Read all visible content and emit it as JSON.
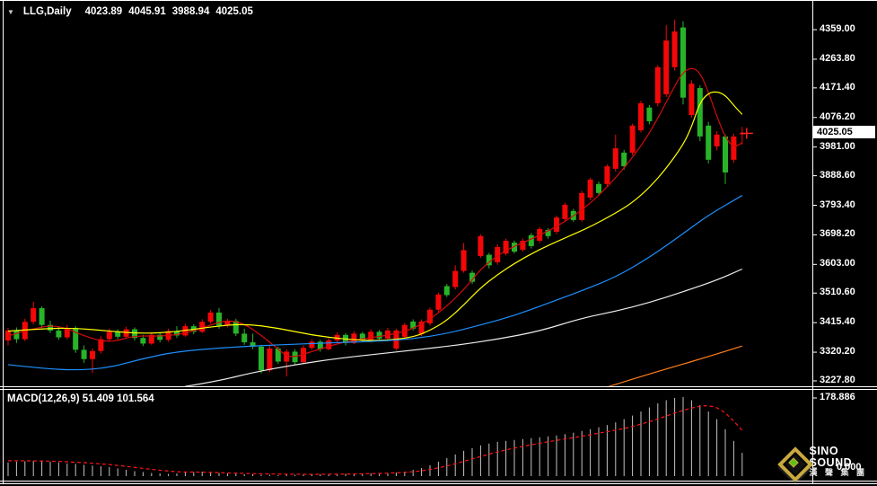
{
  "header": {
    "dropdown_icon": "▼",
    "symbol": "LLG,Daily",
    "open": "4023.89",
    "high": "4045.91",
    "low": "3988.94",
    "close": "4025.05"
  },
  "macd_title": "MACD(12,26,9) 51.409 101.564",
  "price_tag": "4025.05",
  "macd_axis": {
    "max": "178.886",
    "min": "0.000"
  },
  "logo": {
    "name": "SINO SOUND",
    "cjk": "漢 聲 集 團"
  },
  "chart_data": {
    "type": "candlestick",
    "symbol": "LLG",
    "timeframe": "Daily",
    "last_ohlc": {
      "open": 4023.89,
      "high": 4045.91,
      "low": 3988.94,
      "close": 4025.05
    },
    "color_convention": "red = up, green = down",
    "colors": {
      "background": "#000000",
      "up": "#f40707",
      "down": "#28b428",
      "border": "#ffffff",
      "histogram": "#c4c4c4",
      "signal": "#ff1414",
      "marker": "#ff2020"
    },
    "price_axis": {
      "ticks": [
        4359.0,
        4263.8,
        4171.4,
        4076.2,
        3981.0,
        3888.6,
        3793.4,
        3698.2,
        3603.0,
        3510.6,
        3415.4,
        3320.2,
        3227.8
      ],
      "current_price": 4025.05
    },
    "candles": [
      [
        3358,
        3398,
        3342,
        3390
      ],
      [
        3390,
        3400,
        3350,
        3362
      ],
      [
        3362,
        3428,
        3356,
        3418
      ],
      [
        3418,
        3483,
        3410,
        3462
      ],
      [
        3462,
        3468,
        3398,
        3408
      ],
      [
        3408,
        3422,
        3382,
        3390
      ],
      [
        3390,
        3402,
        3360,
        3368
      ],
      [
        3368,
        3408,
        3362,
        3398
      ],
      [
        3398,
        3404,
        3318,
        3328
      ],
      [
        3328,
        3342,
        3286,
        3298
      ],
      [
        3298,
        3332,
        3253,
        3324
      ],
      [
        3324,
        3372,
        3316,
        3362
      ],
      [
        3362,
        3396,
        3354,
        3386
      ],
      [
        3386,
        3394,
        3362,
        3370
      ],
      [
        3370,
        3402,
        3366,
        3394
      ],
      [
        3394,
        3400,
        3358,
        3366
      ],
      [
        3366,
        3376,
        3340,
        3348
      ],
      [
        3348,
        3384,
        3344,
        3376
      ],
      [
        3376,
        3382,
        3352,
        3360
      ],
      [
        3360,
        3396,
        3354,
        3388
      ],
      [
        3388,
        3404,
        3366,
        3374
      ],
      [
        3374,
        3412,
        3370,
        3404
      ],
      [
        3404,
        3410,
        3378,
        3386
      ],
      [
        3386,
        3426,
        3382,
        3418
      ],
      [
        3418,
        3456,
        3412,
        3448
      ],
      [
        3448,
        3462,
        3396,
        3406
      ],
      [
        3406,
        3428,
        3400,
        3421
      ],
      [
        3421,
        3428,
        3372,
        3380
      ],
      [
        3380,
        3396,
        3344,
        3352
      ],
      [
        3352,
        3380,
        3330,
        3338
      ],
      [
        3338,
        3344,
        3252,
        3262
      ],
      [
        3262,
        3340,
        3256,
        3332
      ],
      [
        3332,
        3338,
        3282,
        3290
      ],
      [
        3290,
        3330,
        3242,
        3322
      ],
      [
        3322,
        3330,
        3280,
        3288
      ],
      [
        3288,
        3342,
        3284,
        3334
      ],
      [
        3334,
        3362,
        3328,
        3354
      ],
      [
        3354,
        3360,
        3322,
        3330
      ],
      [
        3330,
        3366,
        3326,
        3358
      ],
      [
        3358,
        3384,
        3352,
        3376
      ],
      [
        3376,
        3382,
        3342,
        3350
      ],
      [
        3350,
        3388,
        3346,
        3380
      ],
      [
        3380,
        3386,
        3352,
        3360
      ],
      [
        3360,
        3394,
        3356,
        3386
      ],
      [
        3386,
        3392,
        3356,
        3364
      ],
      [
        3364,
        3398,
        3358,
        3390
      ],
      [
        3332,
        3396,
        3326,
        3390
      ],
      [
        3370,
        3415,
        3364,
        3408
      ],
      [
        3419,
        3426,
        3390,
        3396
      ],
      [
        3379,
        3426,
        3372,
        3419
      ],
      [
        3413,
        3464,
        3406,
        3457
      ],
      [
        3457,
        3512,
        3450,
        3506
      ],
      [
        3533,
        3540,
        3498,
        3504
      ],
      [
        3530,
        3600,
        3522,
        3582
      ],
      [
        3582,
        3672,
        3576,
        3649
      ],
      [
        3576,
        3584,
        3540,
        3547
      ],
      [
        3630,
        3700,
        3624,
        3694
      ],
      [
        3634,
        3640,
        3590,
        3600
      ],
      [
        3610,
        3668,
        3602,
        3659
      ],
      [
        3638,
        3686,
        3632,
        3679
      ],
      [
        3673,
        3680,
        3638,
        3644
      ],
      [
        3650,
        3686,
        3644,
        3679
      ],
      [
        3697,
        3704,
        3654,
        3662
      ],
      [
        3679,
        3724,
        3672,
        3717
      ],
      [
        3714,
        3720,
        3686,
        3694
      ],
      [
        3708,
        3760,
        3700,
        3754
      ],
      [
        3749,
        3802,
        3742,
        3795
      ],
      [
        3775,
        3782,
        3740,
        3746
      ],
      [
        3746,
        3840,
        3740,
        3833
      ],
      [
        3818,
        3882,
        3810,
        3876
      ],
      [
        3862,
        3870,
        3824,
        3833
      ],
      [
        3862,
        3925,
        3854,
        3919
      ],
      [
        3911,
        4021,
        3902,
        3977
      ],
      [
        3963,
        3972,
        3908,
        3919
      ],
      [
        3963,
        4056,
        3954,
        4050
      ],
      [
        4035,
        4130,
        4028,
        4122
      ],
      [
        4108,
        4116,
        4054,
        4064
      ],
      [
        4122,
        4245,
        4112,
        4238
      ],
      [
        4151,
        4373,
        4142,
        4324
      ],
      [
        4238,
        4391,
        4228,
        4353
      ],
      [
        4366,
        4386,
        4118,
        4140
      ],
      [
        4084,
        4196,
        4076,
        4185
      ],
      [
        4171,
        4180,
        4000,
        4015
      ],
      [
        4050,
        4062,
        3928,
        3940
      ],
      [
        3983,
        4032,
        3970,
        4021
      ],
      [
        4015,
        4022,
        3862,
        3899
      ],
      [
        3940,
        4024,
        3930,
        4015
      ],
      [
        4023.89,
        4045.91,
        3988.94,
        4025.05
      ]
    ],
    "moving_averages": [
      {
        "name": "ma-fast",
        "color": "#d40b0b",
        "points": [
          [
            0,
            3372
          ],
          [
            3,
            3398
          ],
          [
            6,
            3408
          ],
          [
            9,
            3372
          ],
          [
            12,
            3350
          ],
          [
            15,
            3374
          ],
          [
            18,
            3371
          ],
          [
            21,
            3380
          ],
          [
            24,
            3408
          ],
          [
            26,
            3424
          ],
          [
            28,
            3412
          ],
          [
            30,
            3375
          ],
          [
            32,
            3330
          ],
          [
            33,
            3308
          ],
          [
            34,
            3305
          ],
          [
            36,
            3322
          ],
          [
            39,
            3348
          ],
          [
            42,
            3364
          ],
          [
            45,
            3374
          ],
          [
            48,
            3394
          ],
          [
            51,
            3444
          ],
          [
            54,
            3520
          ],
          [
            56,
            3588
          ],
          [
            58,
            3632
          ],
          [
            60,
            3662
          ],
          [
            63,
            3696
          ],
          [
            66,
            3740
          ],
          [
            69,
            3798
          ],
          [
            72,
            3880
          ],
          [
            75,
            3982
          ],
          [
            77,
            4072
          ],
          [
            79,
            4178
          ],
          [
            80,
            4222
          ],
          [
            81,
            4238
          ],
          [
            82,
            4222
          ],
          [
            83,
            4158
          ],
          [
            84,
            4080
          ],
          [
            85,
            4012
          ],
          [
            86,
            3978
          ],
          [
            87,
            3995
          ]
        ]
      },
      {
        "name": "ma-medium",
        "color": "#ffff00",
        "points": [
          [
            0,
            3388
          ],
          [
            4,
            3396
          ],
          [
            8,
            3398
          ],
          [
            12,
            3388
          ],
          [
            16,
            3380
          ],
          [
            20,
            3386
          ],
          [
            24,
            3402
          ],
          [
            28,
            3412
          ],
          [
            32,
            3398
          ],
          [
            36,
            3375
          ],
          [
            40,
            3362
          ],
          [
            44,
            3356
          ],
          [
            48,
            3368
          ],
          [
            50,
            3390
          ],
          [
            52,
            3422
          ],
          [
            54,
            3472
          ],
          [
            56,
            3528
          ],
          [
            58,
            3570
          ],
          [
            60,
            3606
          ],
          [
            63,
            3652
          ],
          [
            66,
            3688
          ],
          [
            69,
            3724
          ],
          [
            72,
            3768
          ],
          [
            74,
            3802
          ],
          [
            76,
            3850
          ],
          [
            78,
            3912
          ],
          [
            80,
            3988
          ],
          [
            81,
            4045
          ],
          [
            82,
            4125
          ],
          [
            83,
            4155
          ],
          [
            84,
            4160
          ],
          [
            85,
            4148
          ],
          [
            86,
            4115
          ],
          [
            87,
            4086
          ]
        ]
      },
      {
        "name": "ma-slow",
        "color": "#1e90ff",
        "points": [
          [
            0,
            3280
          ],
          [
            4,
            3268
          ],
          [
            8,
            3262
          ],
          [
            12,
            3270
          ],
          [
            16,
            3300
          ],
          [
            20,
            3322
          ],
          [
            26,
            3336
          ],
          [
            32,
            3344
          ],
          [
            38,
            3350
          ],
          [
            44,
            3356
          ],
          [
            48,
            3363
          ],
          [
            52,
            3380
          ],
          [
            56,
            3408
          ],
          [
            60,
            3438
          ],
          [
            64,
            3478
          ],
          [
            68,
            3518
          ],
          [
            72,
            3562
          ],
          [
            76,
            3625
          ],
          [
            80,
            3702
          ],
          [
            83,
            3762
          ],
          [
            87,
            3825
          ]
        ]
      },
      {
        "name": "ma-long",
        "color": "#ececec",
        "points": [
          [
            21,
            3210
          ],
          [
            25,
            3228
          ],
          [
            29,
            3255
          ],
          [
            34,
            3280
          ],
          [
            39,
            3300
          ],
          [
            44,
            3315
          ],
          [
            48,
            3327
          ],
          [
            53,
            3342
          ],
          [
            58,
            3362
          ],
          [
            63,
            3388
          ],
          [
            68,
            3430
          ],
          [
            72,
            3452
          ],
          [
            76,
            3480
          ],
          [
            80,
            3515
          ],
          [
            84,
            3552
          ],
          [
            87,
            3588
          ]
        ]
      },
      {
        "name": "ma-longest",
        "color": "#ff7f1e",
        "points": [
          [
            71,
            3208
          ],
          [
            75,
            3242
          ],
          [
            79,
            3274
          ],
          [
            83,
            3306
          ],
          [
            87,
            3340
          ]
        ]
      }
    ],
    "macd": {
      "label": "MACD(12,26,9)",
      "value": 51.409,
      "signal_value": 101.564,
      "axis_max": 178.886,
      "axis_min": 0.0,
      "histogram": [
        30,
        32,
        33,
        34,
        33,
        32,
        30,
        28,
        27,
        25,
        23,
        22,
        20,
        17,
        14,
        11,
        9,
        7,
        6,
        5,
        6,
        8,
        9,
        10,
        9,
        7,
        6,
        5,
        4,
        4,
        3,
        3,
        2,
        3,
        3,
        3,
        4,
        4,
        5,
        5,
        5,
        6,
        5,
        6,
        6,
        6,
        8,
        10,
        14,
        18,
        24,
        32,
        40,
        48,
        56,
        62,
        68,
        72,
        76,
        78,
        80,
        82,
        84,
        86,
        88,
        90,
        93,
        96,
        100,
        104,
        108,
        113,
        119,
        126,
        134,
        143,
        152,
        161,
        168,
        173,
        175,
        168,
        157,
        143,
        126,
        104,
        78,
        51.409
      ],
      "signal_points": [
        [
          0,
          34
        ],
        [
          4,
          34
        ],
        [
          8,
          31
        ],
        [
          12,
          26
        ],
        [
          16,
          17
        ],
        [
          20,
          9
        ],
        [
          23,
          9
        ],
        [
          26,
          7
        ],
        [
          30,
          5
        ],
        [
          34,
          4
        ],
        [
          38,
          4
        ],
        [
          42,
          5
        ],
        [
          46,
          7
        ],
        [
          49,
          11
        ],
        [
          52,
          22
        ],
        [
          55,
          38
        ],
        [
          58,
          54
        ],
        [
          61,
          66
        ],
        [
          64,
          76
        ],
        [
          67,
          85
        ],
        [
          70,
          95
        ],
        [
          73,
          105
        ],
        [
          76,
          120
        ],
        [
          78,
          133
        ],
        [
          80,
          146
        ],
        [
          82,
          155
        ],
        [
          83,
          156
        ],
        [
          84,
          152
        ],
        [
          85,
          140
        ],
        [
          86,
          122
        ],
        [
          87,
          101.564
        ]
      ]
    }
  }
}
